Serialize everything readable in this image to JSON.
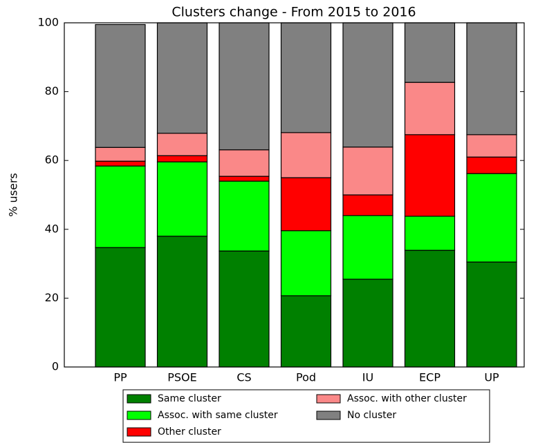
{
  "chart_data": {
    "type": "stacked_bar",
    "title": "Clusters change - From 2015 to 2016",
    "ylabel": "% users",
    "categories": [
      "PP",
      "PSOE",
      "CS",
      "Pod",
      "IU",
      "ECP",
      "UP"
    ],
    "series": [
      {
        "name": "Same cluster",
        "color": "#008000",
        "values": [
          34.7,
          38.0,
          33.7,
          20.7,
          25.5,
          33.9,
          30.5
        ]
      },
      {
        "name": "Assoc. with same cluster",
        "color": "#00ff00",
        "values": [
          23.7,
          21.6,
          20.3,
          18.9,
          18.5,
          9.9,
          25.7
        ]
      },
      {
        "name": "Other cluster",
        "color": "#ff0000",
        "values": [
          1.4,
          1.8,
          1.4,
          15.4,
          6.0,
          23.7,
          4.8
        ]
      },
      {
        "name": "Assoc. with other cluster",
        "color": "#fa8888",
        "values": [
          4.0,
          6.5,
          7.7,
          13.1,
          13.9,
          15.2,
          6.5
        ]
      },
      {
        "name": "No cluster",
        "color": "#808080",
        "values": [
          35.7,
          32.1,
          36.9,
          31.9,
          36.1,
          17.3,
          32.5
        ]
      }
    ],
    "ylim": [
      0,
      100
    ],
    "yticks": [
      0,
      20,
      40,
      60,
      80,
      100
    ],
    "legend": "lower center"
  }
}
